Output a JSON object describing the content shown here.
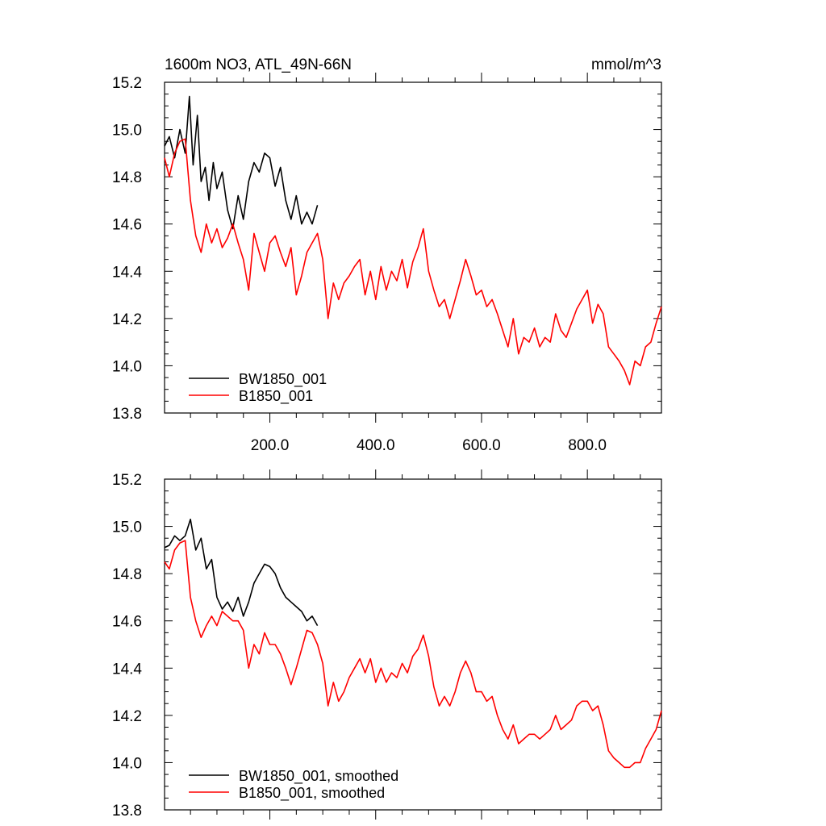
{
  "chart_data": [
    {
      "type": "line",
      "title": "1600m NO3, ATL_49N-66N",
      "units": "mmol/m^3",
      "xlabel": "",
      "ylabel": "",
      "xlim": [
        1,
        940
      ],
      "ylim": [
        13.8,
        15.2
      ],
      "xticks": [
        200,
        400,
        600,
        800
      ],
      "xtick_labels": [
        "200.0",
        "400.0",
        "600.0",
        "800.0"
      ],
      "yticks": [
        13.8,
        14.0,
        14.2,
        14.4,
        14.6,
        14.8,
        15.0,
        15.2
      ],
      "ytick_labels": [
        "13.8",
        "14.0",
        "14.2",
        "14.4",
        "14.6",
        "14.8",
        "15.0",
        "15.2"
      ],
      "grid": false,
      "legend_position": "bottom-left",
      "series": [
        {
          "name": "BW1850_001",
          "color": "#000000",
          "x": [
            1,
            10,
            20,
            30,
            40,
            48,
            55,
            63,
            70,
            78,
            85,
            93,
            100,
            110,
            120,
            130,
            140,
            150,
            160,
            170,
            180,
            190,
            200,
            210,
            220,
            230,
            240,
            250,
            260,
            270,
            280,
            290
          ],
          "values": [
            14.93,
            14.97,
            14.88,
            15.0,
            14.9,
            15.14,
            14.85,
            15.06,
            14.78,
            14.84,
            14.7,
            14.86,
            14.75,
            14.82,
            14.66,
            14.58,
            14.72,
            14.62,
            14.78,
            14.86,
            14.82,
            14.9,
            14.88,
            14.76,
            14.84,
            14.7,
            14.62,
            14.72,
            14.6,
            14.65,
            14.6,
            14.68
          ]
        },
        {
          "name": "B1850_001",
          "color": "#ff0000",
          "x": [
            1,
            10,
            20,
            30,
            40,
            50,
            60,
            70,
            80,
            90,
            100,
            110,
            120,
            130,
            140,
            150,
            160,
            170,
            180,
            190,
            200,
            210,
            220,
            230,
            240,
            250,
            260,
            270,
            280,
            290,
            300,
            310,
            320,
            330,
            340,
            350,
            360,
            370,
            380,
            390,
            400,
            410,
            420,
            430,
            440,
            450,
            460,
            470,
            480,
            490,
            500,
            510,
            520,
            530,
            540,
            550,
            560,
            570,
            580,
            590,
            600,
            610,
            620,
            630,
            640,
            650,
            660,
            670,
            680,
            690,
            700,
            710,
            720,
            730,
            740,
            750,
            760,
            770,
            780,
            790,
            800,
            810,
            820,
            830,
            840,
            850,
            860,
            870,
            880,
            890,
            900,
            910,
            920,
            930,
            940
          ],
          "values": [
            14.88,
            14.8,
            14.9,
            14.95,
            14.96,
            14.7,
            14.55,
            14.48,
            14.6,
            14.52,
            14.58,
            14.5,
            14.54,
            14.6,
            14.52,
            14.45,
            14.32,
            14.56,
            14.48,
            14.4,
            14.52,
            14.55,
            14.48,
            14.42,
            14.5,
            14.3,
            14.38,
            14.48,
            14.52,
            14.56,
            14.45,
            14.2,
            14.35,
            14.28,
            14.35,
            14.38,
            14.42,
            14.45,
            14.3,
            14.4,
            14.28,
            14.42,
            14.32,
            14.4,
            14.36,
            14.45,
            14.33,
            14.44,
            14.5,
            14.58,
            14.4,
            14.32,
            14.25,
            14.28,
            14.2,
            14.28,
            14.36,
            14.45,
            14.38,
            14.3,
            14.32,
            14.25,
            14.28,
            14.22,
            14.15,
            14.08,
            14.2,
            14.05,
            14.12,
            14.1,
            14.16,
            14.08,
            14.12,
            14.1,
            14.22,
            14.15,
            14.12,
            14.18,
            14.24,
            14.28,
            14.32,
            14.18,
            14.26,
            14.22,
            14.08,
            14.05,
            14.02,
            13.98,
            13.92,
            14.02,
            14.0,
            14.08,
            14.1,
            14.18,
            14.25
          ]
        }
      ]
    },
    {
      "type": "line",
      "title": "",
      "units": "",
      "xlabel": "",
      "ylabel": "",
      "xlim": [
        1,
        940
      ],
      "ylim": [
        13.8,
        15.2
      ],
      "xticks": [
        200,
        400,
        600,
        800
      ],
      "xtick_labels": [],
      "yticks": [
        13.8,
        14.0,
        14.2,
        14.4,
        14.6,
        14.8,
        15.0,
        15.2
      ],
      "ytick_labels": [
        "13.8",
        "14.0",
        "14.2",
        "14.4",
        "14.6",
        "14.8",
        "15.0",
        "15.2"
      ],
      "grid": false,
      "legend_position": "bottom-left",
      "series": [
        {
          "name": "BW1850_001, smoothed",
          "color": "#000000",
          "x": [
            1,
            10,
            20,
            30,
            40,
            50,
            60,
            70,
            80,
            90,
            100,
            110,
            120,
            130,
            140,
            150,
            160,
            170,
            180,
            190,
            200,
            210,
            220,
            230,
            240,
            250,
            260,
            270,
            280,
            290
          ],
          "values": [
            14.91,
            14.92,
            14.96,
            14.94,
            14.96,
            15.03,
            14.9,
            14.95,
            14.82,
            14.86,
            14.7,
            14.65,
            14.68,
            14.64,
            14.7,
            14.62,
            14.68,
            14.76,
            14.8,
            14.84,
            14.83,
            14.8,
            14.74,
            14.7,
            14.68,
            14.66,
            14.64,
            14.6,
            14.62,
            14.58
          ]
        },
        {
          "name": "B1850_001, smoothed",
          "color": "#ff0000",
          "x": [
            1,
            10,
            20,
            30,
            40,
            50,
            60,
            70,
            80,
            90,
            100,
            110,
            120,
            130,
            140,
            150,
            160,
            170,
            180,
            190,
            200,
            210,
            220,
            230,
            240,
            250,
            260,
            270,
            280,
            290,
            300,
            310,
            320,
            330,
            340,
            350,
            360,
            370,
            380,
            390,
            400,
            410,
            420,
            430,
            440,
            450,
            460,
            470,
            480,
            490,
            500,
            510,
            520,
            530,
            540,
            550,
            560,
            570,
            580,
            590,
            600,
            610,
            620,
            630,
            640,
            650,
            660,
            670,
            680,
            690,
            700,
            710,
            720,
            730,
            740,
            750,
            760,
            770,
            780,
            790,
            800,
            810,
            820,
            830,
            840,
            850,
            860,
            870,
            880,
            890,
            900,
            910,
            920,
            930,
            940
          ],
          "values": [
            14.85,
            14.82,
            14.9,
            14.93,
            14.94,
            14.7,
            14.6,
            14.53,
            14.58,
            14.62,
            14.58,
            14.64,
            14.62,
            14.6,
            14.6,
            14.56,
            14.4,
            14.5,
            14.46,
            14.55,
            14.5,
            14.5,
            14.46,
            14.4,
            14.33,
            14.4,
            14.48,
            14.56,
            14.55,
            14.5,
            14.42,
            14.24,
            14.34,
            14.26,
            14.3,
            14.36,
            14.4,
            14.44,
            14.38,
            14.44,
            14.34,
            14.4,
            14.34,
            14.38,
            14.36,
            14.42,
            14.38,
            14.45,
            14.48,
            14.54,
            14.45,
            14.32,
            14.24,
            14.28,
            14.24,
            14.3,
            14.38,
            14.43,
            14.38,
            14.3,
            14.3,
            14.26,
            14.28,
            14.2,
            14.14,
            14.1,
            14.16,
            14.08,
            14.1,
            14.12,
            14.12,
            14.1,
            14.12,
            14.14,
            14.2,
            14.14,
            14.16,
            14.18,
            14.24,
            14.26,
            14.26,
            14.22,
            14.24,
            14.16,
            14.05,
            14.02,
            14.0,
            13.98,
            13.98,
            14.0,
            14.0,
            14.06,
            14.1,
            14.14,
            14.22
          ]
        }
      ]
    }
  ]
}
